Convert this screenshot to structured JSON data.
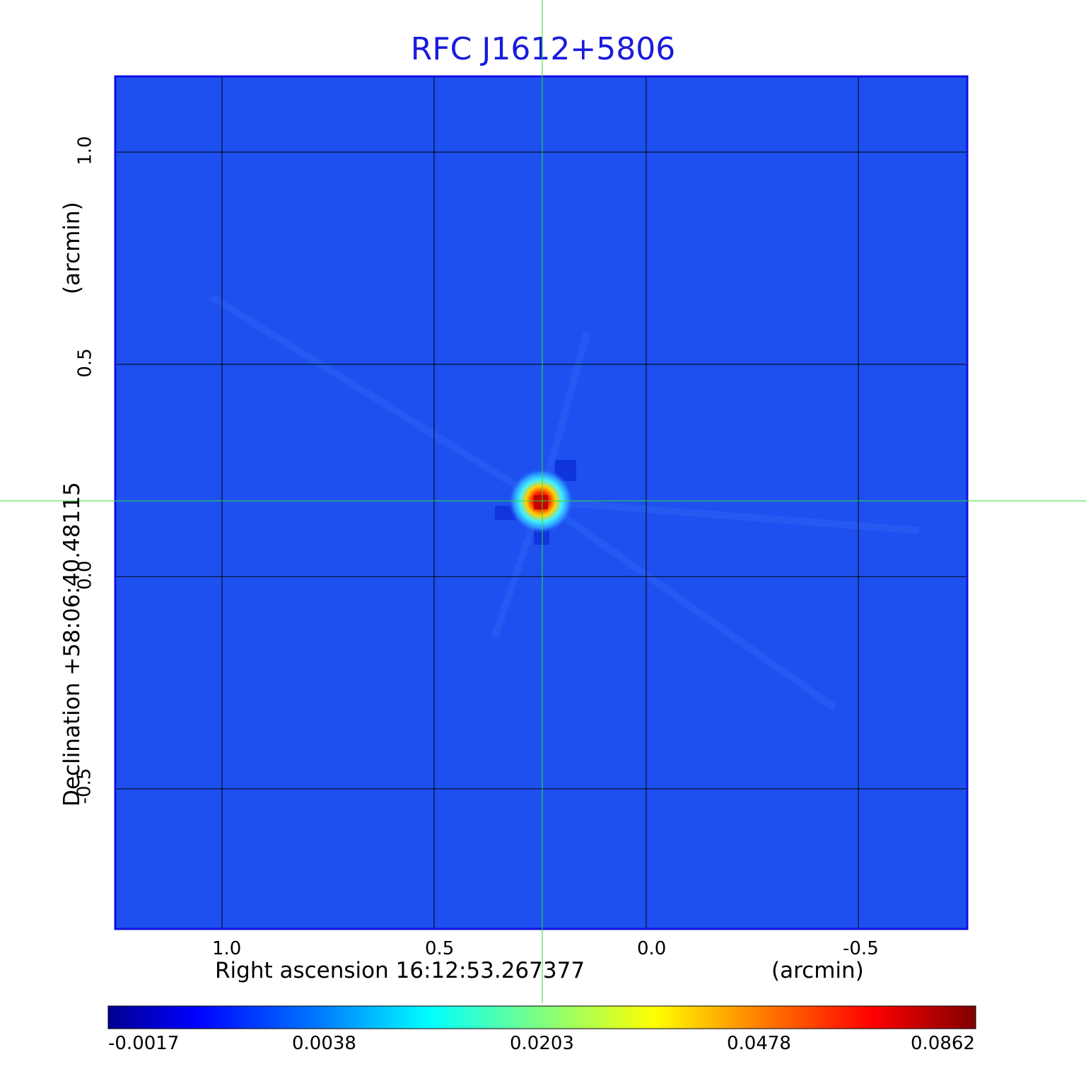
{
  "title": "RFC J1612+5806",
  "x_axis": {
    "label": "Right ascension  16:12:53.267377",
    "unit": "(arcmin)",
    "ticks": [
      "1.0",
      "0.5",
      "0.0",
      "-0.5"
    ]
  },
  "y_axis": {
    "label": "Declination  +58:06:40.48115",
    "unit": "(arcmin)",
    "ticks": [
      "1.0",
      "0.5",
      "0.0",
      "-0.5"
    ]
  },
  "colorbar": {
    "ticks": [
      "-0.0017",
      "0.0038",
      "0.0203",
      "0.0478",
      "0.0862"
    ],
    "colors": [
      "#00008f",
      "#0000ff",
      "#0080ff",
      "#00ffff",
      "#80ff80",
      "#ffff00",
      "#ff8000",
      "#ff0000",
      "#800000"
    ]
  },
  "colors": {
    "title": "#1a1adc",
    "background_map": "#1e50f0",
    "crosshair": "#33dd33",
    "frame": "#1010e0",
    "grid": "#000000"
  }
}
